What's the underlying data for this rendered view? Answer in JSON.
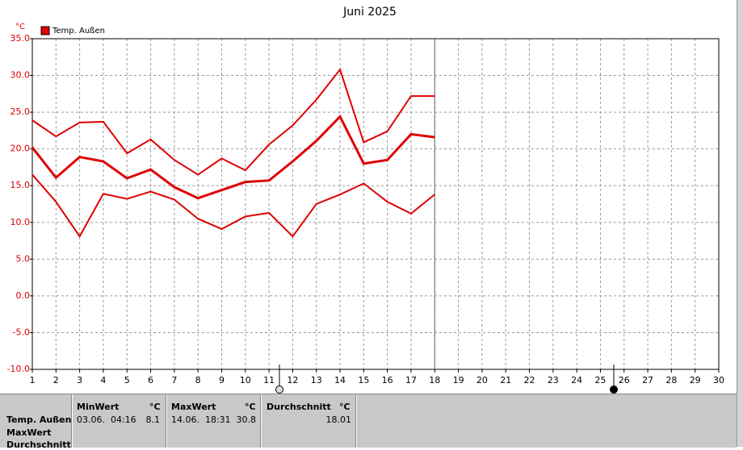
{
  "chart_data": {
    "type": "line",
    "title": "Juni 2025",
    "y_unit": "°C",
    "x": [
      1,
      2,
      3,
      4,
      5,
      6,
      7,
      8,
      9,
      10,
      11,
      12,
      13,
      14,
      15,
      16,
      17,
      18,
      19,
      20,
      21,
      22,
      23,
      24,
      25,
      26,
      27,
      28,
      29,
      30
    ],
    "xlim": [
      1,
      30
    ],
    "series": [
      {
        "name": "Temp. Außen",
        "color": "#e00000",
        "values": [
          20.2,
          16.1,
          18.9,
          18.3,
          16.0,
          17.2,
          14.8,
          13.3,
          14.4,
          15.5,
          15.7,
          18.3,
          21.1,
          24.4,
          18.0,
          18.5,
          22.0,
          21.6,
          null,
          null,
          null,
          null,
          null,
          null,
          null,
          null,
          null,
          null,
          null,
          null
        ]
      },
      {
        "color": "#e00000",
        "values": [
          23.9,
          21.7,
          23.6,
          23.7,
          19.4,
          21.3,
          18.5,
          16.5,
          18.7,
          17.1,
          20.6,
          23.2,
          26.7,
          30.8,
          20.9,
          22.4,
          27.2,
          27.2,
          null,
          null,
          null,
          null,
          null,
          null,
          null,
          null,
          null,
          null,
          null,
          null
        ]
      },
      {
        "color": "#e00000",
        "values": [
          16.5,
          12.8,
          8.1,
          13.9,
          13.2,
          14.2,
          13.1,
          10.5,
          9.1,
          10.8,
          11.3,
          8.1,
          12.5,
          13.8,
          15.3,
          12.8,
          11.2,
          13.8,
          null,
          null,
          null,
          null,
          null,
          null,
          null,
          null,
          null,
          null,
          null,
          null
        ]
      }
    ],
    "ylim": [
      -10,
      35
    ],
    "yticks": [
      {
        "value": -10,
        "label": "-10.0"
      },
      {
        "value": -5,
        "label": "-5.0"
      },
      {
        "value": 0,
        "label": "0.0"
      },
      {
        "value": 5,
        "label": "5.0"
      },
      {
        "value": 10,
        "label": "10.0"
      },
      {
        "value": 15,
        "label": "15.0"
      },
      {
        "value": 20,
        "label": "20.0"
      },
      {
        "value": 25,
        "label": "25.0"
      },
      {
        "value": 30,
        "label": "30.0"
      },
      {
        "value": 35,
        "label": "35.0"
      }
    ],
    "grid": true,
    "legend": "top-left"
  },
  "table": {
    "header": [
      "MinWert",
      "°C",
      "MaxWert",
      "°C",
      "Durchschnitt",
      "°C"
    ],
    "rows": [
      [
        "Temp. Außen",
        "03.06.  04:16",
        "8.1",
        "14.06.  18:31",
        "30.8",
        "18.01"
      ],
      [
        "MaxWert"
      ],
      [
        "Durchschnitt"
      ]
    ]
  }
}
